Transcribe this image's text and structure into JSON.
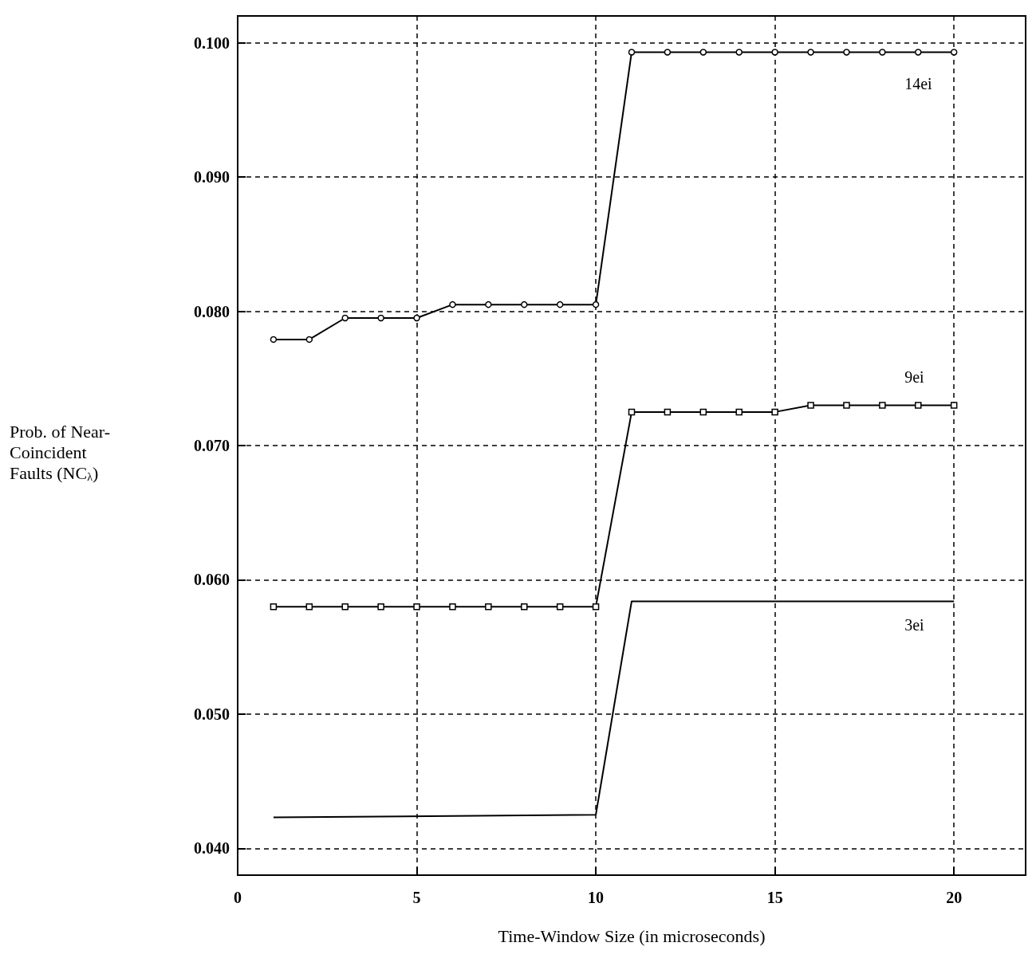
{
  "chart_data": {
    "type": "line",
    "xlabel": "Time-Window Size (in microseconds)",
    "ylabel": "Prob. of Near-\nCoincident\nFaults (NC$_{λ}$)",
    "xlim": [
      0,
      22
    ],
    "xticks": [
      0,
      5,
      10,
      15,
      20
    ],
    "ylim": [
      0.038,
      0.102
    ],
    "yticks": [
      {
        "value": 0.04,
        "label": "0.040"
      },
      {
        "value": 0.05,
        "label": "0.050"
      },
      {
        "value": 0.06,
        "label": "0.060"
      },
      {
        "value": 0.07,
        "label": "0.070"
      },
      {
        "value": 0.08,
        "label": "0.080"
      },
      {
        "value": 0.09,
        "label": "0.090"
      },
      {
        "value": 0.1,
        "label": "0.100"
      }
    ],
    "grid": true,
    "line_style": "solid",
    "series": [
      {
        "name": "14ei",
        "color": "#000000",
        "marker": "circle",
        "x": [
          1,
          2,
          3,
          4,
          5,
          6,
          7,
          8,
          9,
          10,
          11,
          12,
          13,
          14,
          15,
          16,
          17,
          18,
          19,
          20
        ],
        "values": [
          0.0779,
          0.0779,
          0.0795,
          0.0795,
          0.0795,
          0.0805,
          0.0805,
          0.0805,
          0.0805,
          0.0805,
          0.0993,
          0.0993,
          0.0993,
          0.0993,
          0.0993,
          0.0993,
          0.0993,
          0.0993,
          0.0993,
          0.0993
        ]
      },
      {
        "name": "9ei",
        "color": "#000000",
        "marker": "square",
        "x": [
          1,
          2,
          3,
          4,
          5,
          6,
          7,
          8,
          9,
          10,
          11,
          12,
          13,
          14,
          15,
          16,
          17,
          18,
          19,
          20
        ],
        "values": [
          0.058,
          0.058,
          0.058,
          0.058,
          0.058,
          0.058,
          0.058,
          0.058,
          0.058,
          0.058,
          0.0725,
          0.0725,
          0.0725,
          0.0725,
          0.0725,
          0.073,
          0.073,
          0.073,
          0.073,
          0.073
        ]
      },
      {
        "name": "3ei",
        "color": "#000000",
        "marker": "none",
        "x": [
          1,
          10,
          11,
          20
        ],
        "values": [
          0.0423,
          0.0425,
          0.0584,
          0.0584
        ]
      }
    ]
  }
}
